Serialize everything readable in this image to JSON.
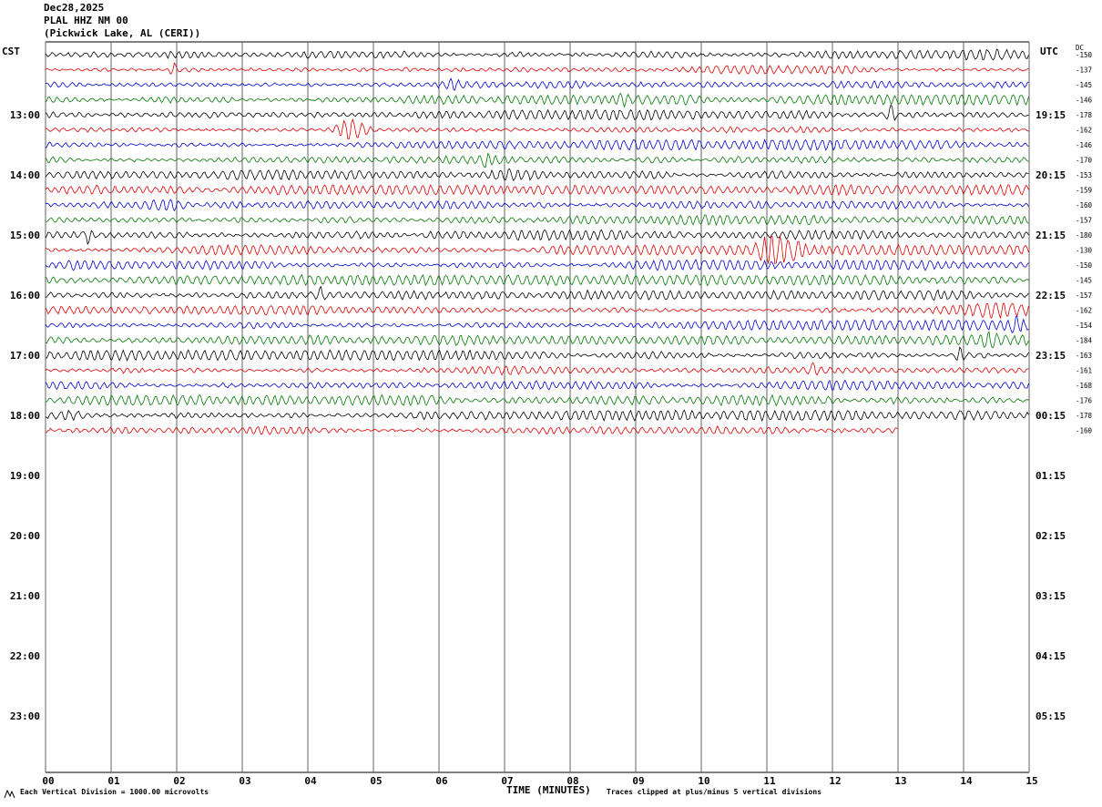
{
  "header": {
    "date": "Dec28,2025",
    "station_line": "PLAL HHZ NM 00",
    "location_line": "(Pickwick Lake, AL (CERI))"
  },
  "axis": {
    "left_tz": "CST",
    "right_tz": "UTC",
    "dc_header": "DC"
  },
  "footer": {
    "scale_note": "Each Vertical Division = 1000.00 microvolts",
    "clip_note": "Traces clipped at plus/minus 5 vertical divisions"
  },
  "chart_data": {
    "type": "line",
    "title": "PLAL HHZ NM 00 helicorder, Dec28,2025",
    "x_label": "TIME (MINUTES)",
    "x_range_minutes": [
      0,
      15
    ],
    "x_ticks": [
      "00",
      "01",
      "02",
      "03",
      "04",
      "05",
      "06",
      "07",
      "08",
      "09",
      "10",
      "11",
      "12",
      "13",
      "14",
      "15"
    ],
    "row_spacing_px": 16.5,
    "clip_divisions": 5,
    "volts_per_division": "1000.00 microvolts",
    "palette": {
      "black": "#000000",
      "red": "#dd0000",
      "blue": "#0000cc",
      "green": "#007700"
    },
    "color_cycle": [
      "black",
      "red",
      "blue",
      "green"
    ],
    "left_hour_labels": [
      {
        "row": 4,
        "label": "13:00"
      },
      {
        "row": 8,
        "label": "14:00"
      },
      {
        "row": 12,
        "label": "15:00"
      },
      {
        "row": 16,
        "label": "16:00"
      },
      {
        "row": 20,
        "label": "17:00"
      },
      {
        "row": 24,
        "label": "18:00"
      },
      {
        "row": 28,
        "label": "19:00"
      },
      {
        "row": 32,
        "label": "20:00"
      },
      {
        "row": 36,
        "label": "21:00"
      },
      {
        "row": 40,
        "label": "22:00"
      },
      {
        "row": 44,
        "label": "23:00"
      }
    ],
    "right_hour_labels": [
      {
        "row": 4,
        "label": "19:15"
      },
      {
        "row": 8,
        "label": "20:15"
      },
      {
        "row": 12,
        "label": "21:15"
      },
      {
        "row": 16,
        "label": "22:15"
      },
      {
        "row": 20,
        "label": "23:15"
      },
      {
        "row": 24,
        "label": "00:15"
      },
      {
        "row": 28,
        "label": "01:15"
      },
      {
        "row": 32,
        "label": "02:15"
      },
      {
        "row": 36,
        "label": "03:15"
      },
      {
        "row": 40,
        "label": "04:15"
      },
      {
        "row": 44,
        "label": "05:15"
      }
    ],
    "traces": [
      {
        "row": 0,
        "color": "black",
        "dc": "-150",
        "end_minute": 15,
        "seed": 3
      },
      {
        "row": 1,
        "color": "red",
        "dc": "-137",
        "end_minute": 15,
        "seed": 7
      },
      {
        "row": 2,
        "color": "blue",
        "dc": "-145",
        "end_minute": 15,
        "seed": 11
      },
      {
        "row": 3,
        "color": "green",
        "dc": "-146",
        "end_minute": 15,
        "seed": 13
      },
      {
        "row": 4,
        "color": "black",
        "dc": "-178",
        "end_minute": 15,
        "seed": 17
      },
      {
        "row": 5,
        "color": "red",
        "dc": "-162",
        "end_minute": 15,
        "seed": 19
      },
      {
        "row": 6,
        "color": "blue",
        "dc": "-146",
        "end_minute": 15,
        "seed": 23
      },
      {
        "row": 7,
        "color": "green",
        "dc": "-170",
        "end_minute": 15,
        "seed": 29
      },
      {
        "row": 8,
        "color": "black",
        "dc": "-153",
        "end_minute": 15,
        "seed": 31
      },
      {
        "row": 9,
        "color": "red",
        "dc": "-159",
        "end_minute": 15,
        "seed": 37
      },
      {
        "row": 10,
        "color": "blue",
        "dc": "-160",
        "end_minute": 15,
        "seed": 41
      },
      {
        "row": 11,
        "color": "green",
        "dc": "-157",
        "end_minute": 15,
        "seed": 43
      },
      {
        "row": 12,
        "color": "black",
        "dc": "-180",
        "end_minute": 15,
        "seed": 47
      },
      {
        "row": 13,
        "color": "red",
        "dc": "-130",
        "end_minute": 15,
        "seed": 53
      },
      {
        "row": 14,
        "color": "blue",
        "dc": "-150",
        "end_minute": 15,
        "seed": 59
      },
      {
        "row": 15,
        "color": "green",
        "dc": "-145",
        "end_minute": 15,
        "seed": 61
      },
      {
        "row": 16,
        "color": "black",
        "dc": "-157",
        "end_minute": 15,
        "seed": 67
      },
      {
        "row": 17,
        "color": "red",
        "dc": "-162",
        "end_minute": 15,
        "seed": 71
      },
      {
        "row": 18,
        "color": "blue",
        "dc": "-154",
        "end_minute": 15,
        "seed": 73
      },
      {
        "row": 19,
        "color": "green",
        "dc": "-184",
        "end_minute": 15,
        "seed": 79
      },
      {
        "row": 20,
        "color": "black",
        "dc": "-163",
        "end_minute": 15,
        "seed": 83
      },
      {
        "row": 21,
        "color": "red",
        "dc": "-161",
        "end_minute": 15,
        "seed": 89
      },
      {
        "row": 22,
        "color": "blue",
        "dc": "-168",
        "end_minute": 15,
        "seed": 97
      },
      {
        "row": 23,
        "color": "green",
        "dc": "-176",
        "end_minute": 15,
        "seed": 101
      },
      {
        "row": 24,
        "color": "black",
        "dc": "-178",
        "end_minute": 15,
        "seed": 103
      },
      {
        "row": 25,
        "color": "red",
        "dc": "-160",
        "end_minute": 13,
        "seed": 107
      }
    ],
    "events": [
      {
        "row": 0,
        "minute": 14.2,
        "width": 0.4,
        "amp": 1.0
      },
      {
        "row": 1,
        "minute": 1.95,
        "width": 0.06,
        "amp": 2.6
      },
      {
        "row": 2,
        "minute": 6.2,
        "width": 0.1,
        "amp": 1.5
      },
      {
        "row": 3,
        "minute": 8.8,
        "width": 0.08,
        "amp": 1.6
      },
      {
        "row": 4,
        "minute": 12.9,
        "width": 0.06,
        "amp": 3.2
      },
      {
        "row": 5,
        "minute": 4.65,
        "width": 0.22,
        "amp": 3.8
      },
      {
        "row": 7,
        "minute": 6.7,
        "width": 0.1,
        "amp": 1.8
      },
      {
        "row": 8,
        "minute": 7.1,
        "width": 0.4,
        "amp": 1.3
      },
      {
        "row": 10,
        "minute": 1.8,
        "width": 0.35,
        "amp": 1.8
      },
      {
        "row": 12,
        "minute": 0.65,
        "width": 0.05,
        "amp": 2.8
      },
      {
        "row": 13,
        "minute": 11.1,
        "width": 0.22,
        "amp": 5.0
      },
      {
        "row": 13,
        "minute": 11.45,
        "width": 0.1,
        "amp": 2.2
      },
      {
        "row": 16,
        "minute": 4.2,
        "width": 0.06,
        "amp": 2.0
      },
      {
        "row": 17,
        "minute": 14.5,
        "width": 0.3,
        "amp": 1.5
      },
      {
        "row": 18,
        "minute": 14.8,
        "width": 0.08,
        "amp": 2.0
      },
      {
        "row": 19,
        "minute": 14.4,
        "width": 0.12,
        "amp": 2.2
      },
      {
        "row": 20,
        "minute": 13.95,
        "width": 0.06,
        "amp": 2.5
      },
      {
        "row": 21,
        "minute": 11.7,
        "width": 0.08,
        "amp": 2.2
      },
      {
        "row": 24,
        "minute": 0.35,
        "width": 0.35,
        "amp": 1.5
      }
    ]
  }
}
